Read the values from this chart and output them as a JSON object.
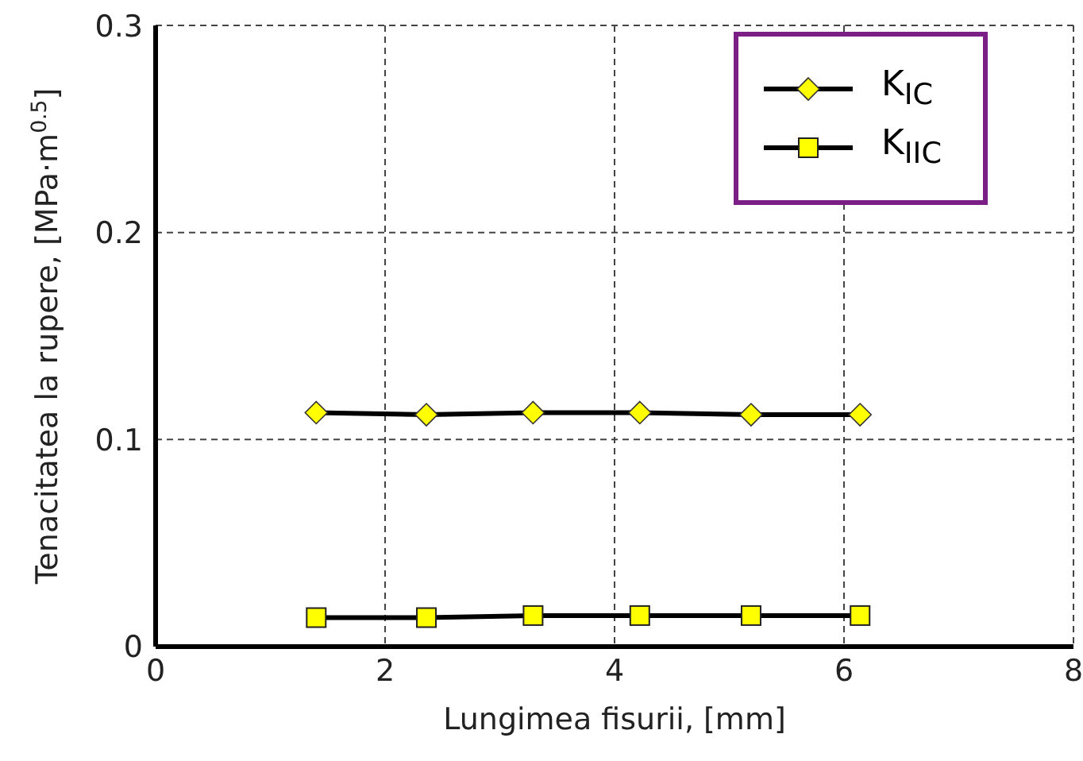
{
  "chart_data": {
    "type": "line",
    "xlabel": "Lungimea fisurii, [mm]",
    "ylabel": "Tenacitatea la rupere, [MPa·m$^{0.5}$]",
    "x": [
      1.4,
      2.36,
      3.29,
      4.22,
      5.19,
      6.14
    ],
    "series": [
      {
        "name": "K$_{IC}$",
        "color": "#ffff00",
        "marker": "diamond",
        "values": [
          0.113,
          0.112,
          0.113,
          0.113,
          0.112,
          0.112
        ]
      },
      {
        "name": "K$_{IIC}$",
        "color": "#ffff00",
        "marker": "square",
        "values": [
          0.014,
          0.014,
          0.015,
          0.015,
          0.015,
          0.015
        ]
      }
    ],
    "xlim": [
      0,
      8
    ],
    "xticks": [
      0,
      2,
      4,
      6,
      8
    ],
    "ylim": [
      0,
      0.3
    ],
    "yticks": [
      0,
      0.1,
      0.2,
      0.3
    ],
    "grid": true,
    "legend": "top right"
  }
}
